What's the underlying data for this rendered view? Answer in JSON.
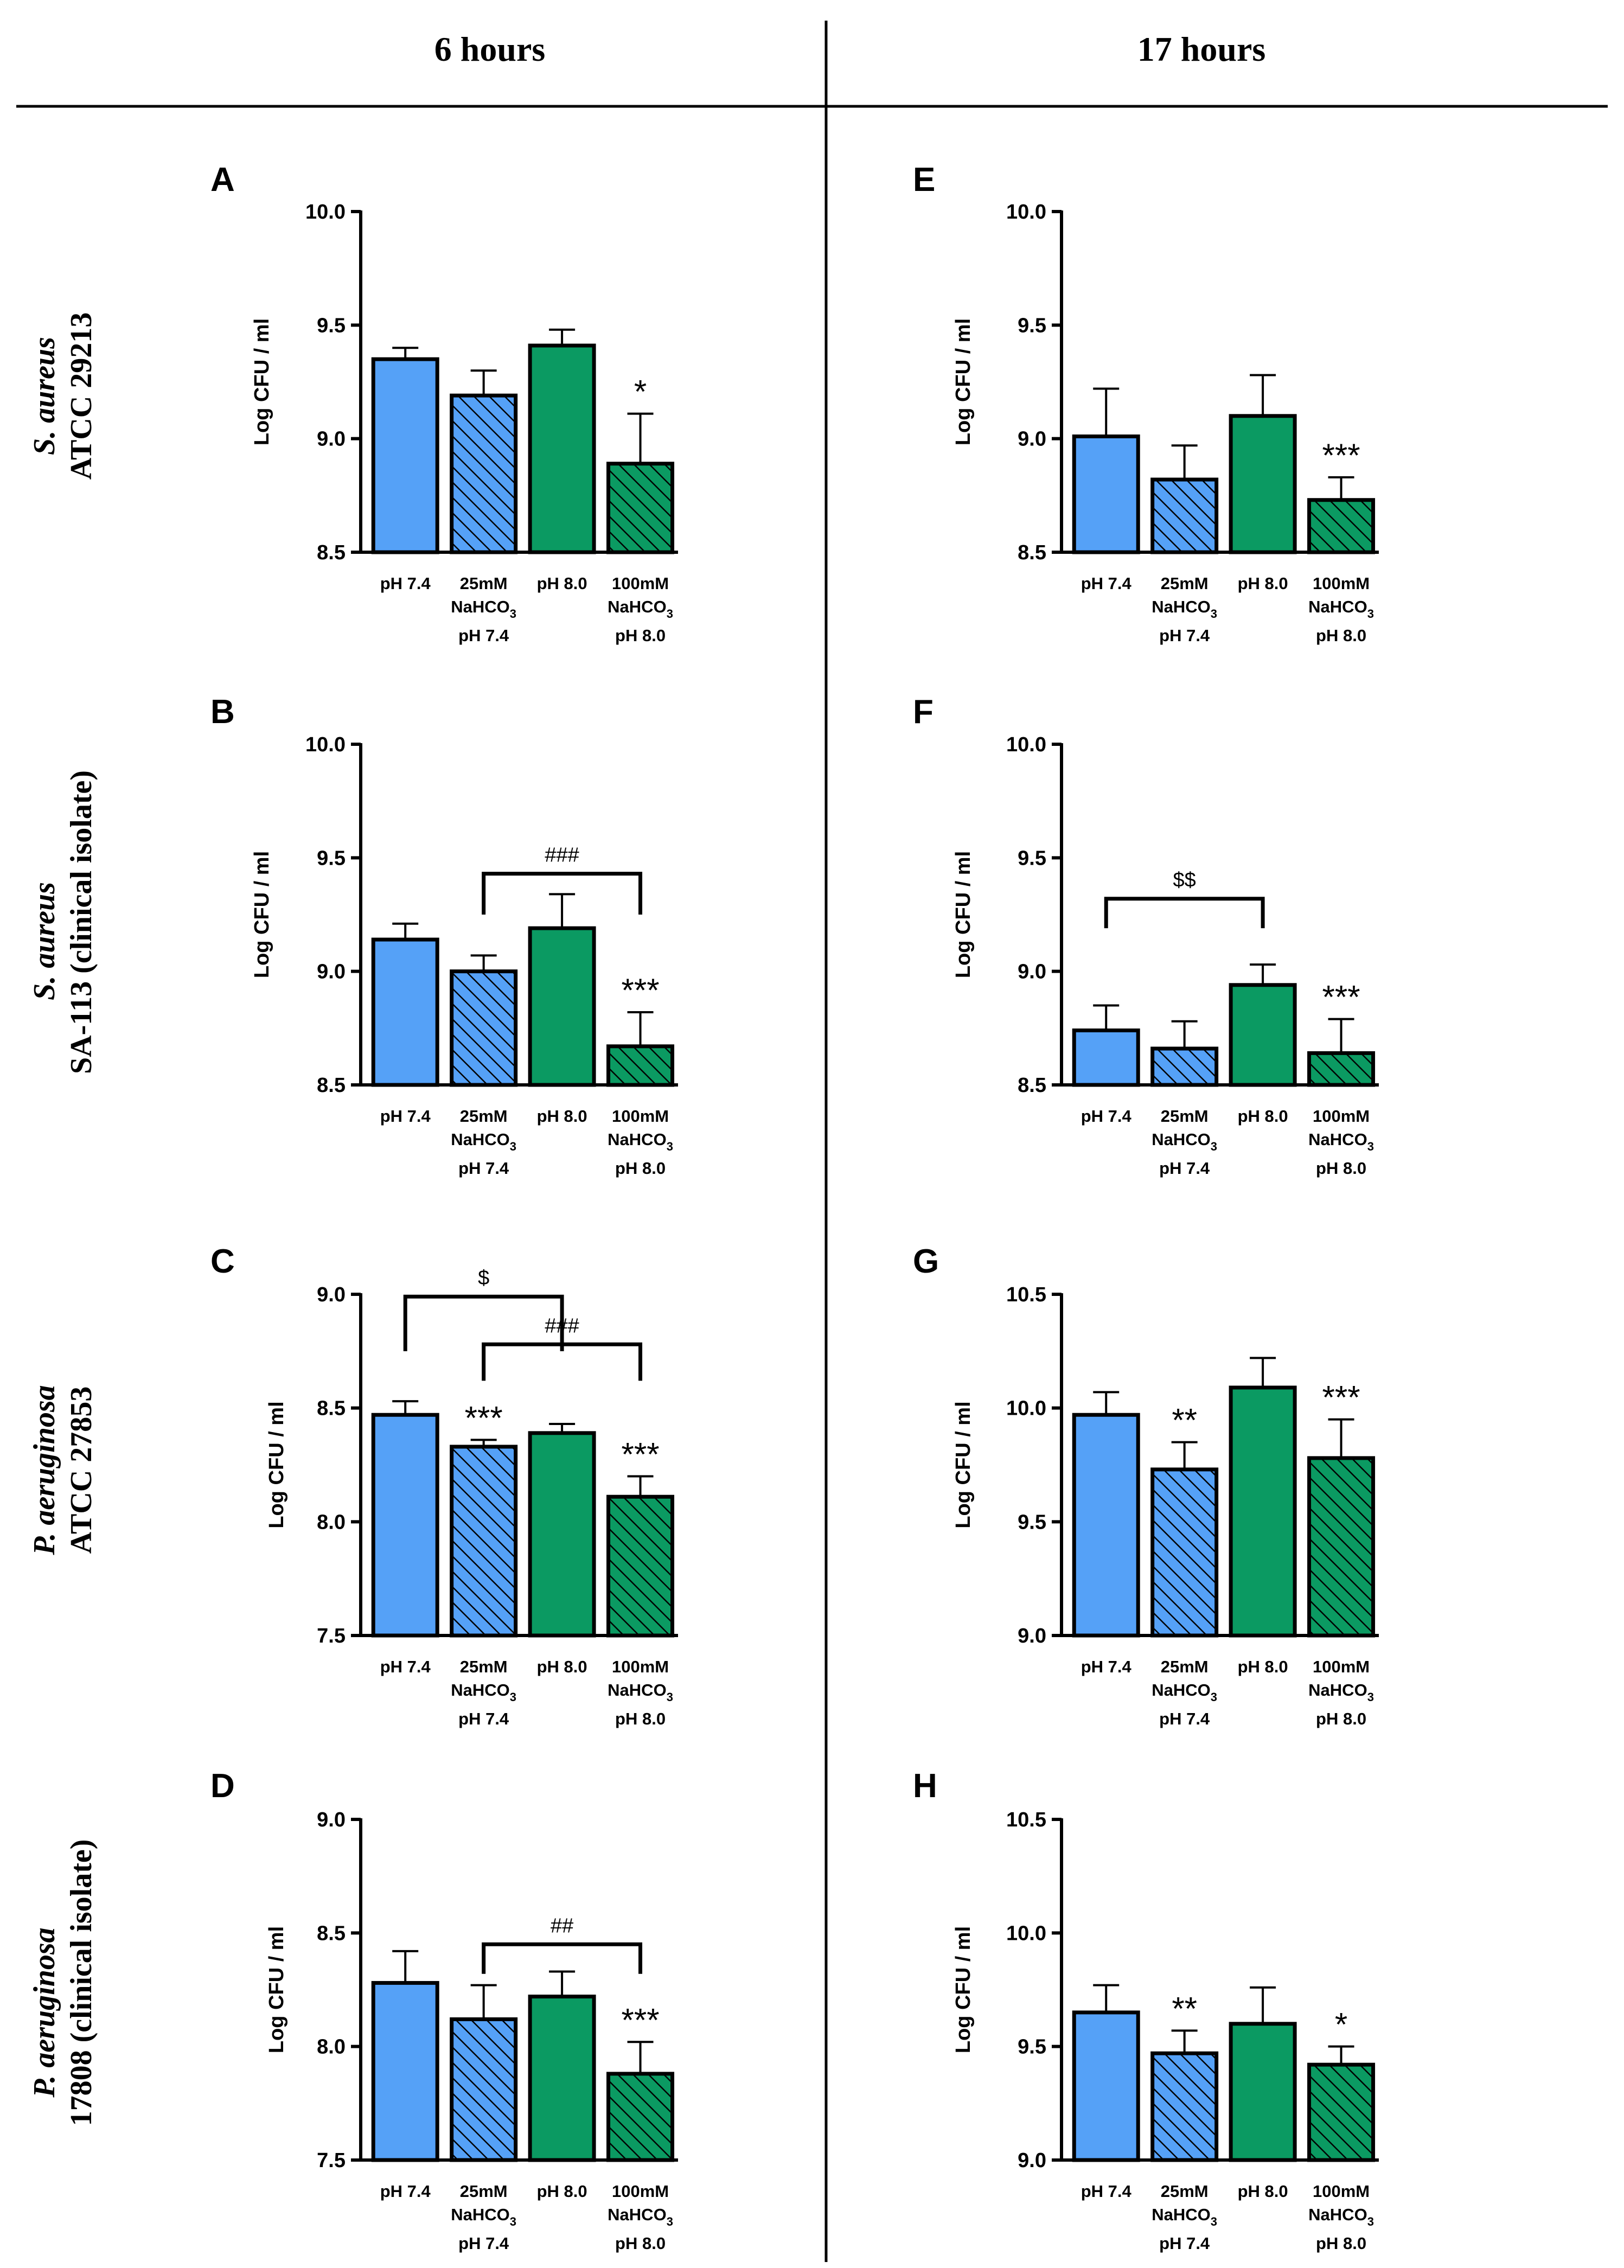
{
  "colors": {
    "ph74": "#55a1f7",
    "ph80": "#0b9a62",
    "stroke": "#000000",
    "background": "#ffffff"
  },
  "columns": [
    "6 hours",
    "17 hours"
  ],
  "rows": [
    {
      "species": "S. aureus",
      "strain": "ATCC 29213"
    },
    {
      "species": "S. aureus",
      "strain": "SA-113 (clinical isolate)"
    },
    {
      "species": "P. aeruginosa",
      "strain": "ATCC 27853"
    },
    {
      "species": "P. aeruginosa",
      "strain": "17808 (clinical isolate)"
    }
  ],
  "chart_data": [
    {
      "panel": "A",
      "type": "bar",
      "time": "6 hours",
      "organism": "S. aureus ATCC 29213",
      "ylabel": "Log CFU / ml",
      "ylim": [
        8.5,
        10.0
      ],
      "yticks": [
        "8.5",
        "9.0",
        "9.5",
        "10.0"
      ],
      "categories": [
        {
          "lines": [
            "pH 7.4"
          ]
        },
        {
          "lines": [
            "25mM",
            "NaHCO3",
            "pH 7.4"
          ]
        },
        {
          "lines": [
            "pH 8.0"
          ]
        },
        {
          "lines": [
            "100mM",
            "NaHCO3",
            "pH 8.0"
          ]
        }
      ],
      "values": [
        9.35,
        9.19,
        9.41,
        8.89
      ],
      "errors": [
        0.05,
        0.11,
        0.07,
        0.22
      ],
      "significance": [
        "",
        "",
        "",
        "*"
      ],
      "brackets": []
    },
    {
      "panel": "E",
      "type": "bar",
      "time": "17 hours",
      "organism": "S. aureus ATCC 29213",
      "ylabel": "Log CFU / ml",
      "ylim": [
        8.5,
        10.0
      ],
      "yticks": [
        "8.5",
        "9.0",
        "9.5",
        "10.0"
      ],
      "categories": [
        {
          "lines": [
            "pH 7.4"
          ]
        },
        {
          "lines": [
            "25mM",
            "NaHCO3",
            "pH 7.4"
          ]
        },
        {
          "lines": [
            "pH 8.0"
          ]
        },
        {
          "lines": [
            "100mM",
            "NaHCO3",
            "pH 8.0"
          ]
        }
      ],
      "values": [
        9.01,
        8.82,
        9.1,
        8.73
      ],
      "errors": [
        0.21,
        0.15,
        0.18,
        0.1
      ],
      "significance": [
        "",
        "",
        "",
        "***"
      ],
      "brackets": []
    },
    {
      "panel": "B",
      "type": "bar",
      "time": "6 hours",
      "organism": "S. aureus SA-113 (clinical isolate)",
      "ylabel": "Log CFU / ml",
      "ylim": [
        8.5,
        10.0
      ],
      "yticks": [
        "8.5",
        "9.0",
        "9.5",
        "10.0"
      ],
      "categories": [
        {
          "lines": [
            "pH 7.4"
          ]
        },
        {
          "lines": [
            "25mM",
            "NaHCO3",
            "pH 7.4"
          ]
        },
        {
          "lines": [
            "pH 8.0"
          ]
        },
        {
          "lines": [
            "100mM",
            "NaHCO3",
            "pH 8.0"
          ]
        }
      ],
      "values": [
        9.14,
        9.0,
        9.19,
        8.67
      ],
      "errors": [
        0.07,
        0.07,
        0.15,
        0.15
      ],
      "significance": [
        "",
        "",
        "",
        "***"
      ],
      "brackets": [
        {
          "from": 1,
          "to": 3,
          "y": 9.43,
          "bottom": 9.25,
          "label": "###"
        }
      ]
    },
    {
      "panel": "F",
      "type": "bar",
      "time": "17 hours",
      "organism": "S. aureus SA-113 (clinical isolate)",
      "ylabel": "Log CFU / ml",
      "ylim": [
        8.5,
        10.0
      ],
      "yticks": [
        "8.5",
        "9.0",
        "9.5",
        "10.0"
      ],
      "categories": [
        {
          "lines": [
            "pH 7.4"
          ]
        },
        {
          "lines": [
            "25mM",
            "NaHCO3",
            "pH 7.4"
          ]
        },
        {
          "lines": [
            "pH 8.0"
          ]
        },
        {
          "lines": [
            "100mM",
            "NaHCO3",
            "pH 8.0"
          ]
        }
      ],
      "values": [
        8.74,
        8.66,
        8.94,
        8.64
      ],
      "errors": [
        0.11,
        0.12,
        0.09,
        0.15
      ],
      "significance": [
        "",
        "",
        "",
        "***"
      ],
      "brackets": [
        {
          "from": 0,
          "to": 2,
          "y": 9.32,
          "bottom": 9.19,
          "label": "$$"
        }
      ]
    },
    {
      "panel": "C",
      "type": "bar",
      "time": "6 hours",
      "organism": "P. aeruginosa ATCC 27853",
      "ylabel": "Log CFU / ml",
      "ylim": [
        7.5,
        9.0
      ],
      "yticks": [
        "7.5",
        "8.0",
        "8.5",
        "9.0"
      ],
      "categories": [
        {
          "lines": [
            "pH 7.4"
          ]
        },
        {
          "lines": [
            "25mM",
            "NaHCO3",
            "pH 7.4"
          ]
        },
        {
          "lines": [
            "pH 8.0"
          ]
        },
        {
          "lines": [
            "100mM",
            "NaHCO3",
            "pH 8.0"
          ]
        }
      ],
      "values": [
        8.47,
        8.33,
        8.39,
        8.11
      ],
      "errors": [
        0.06,
        0.03,
        0.04,
        0.09
      ],
      "significance": [
        "",
        "***",
        "",
        "***"
      ],
      "brackets": [
        {
          "from": 0,
          "to": 2,
          "y": 8.99,
          "bottom": 8.75,
          "label": "$"
        },
        {
          "from": 1,
          "to": 3,
          "y": 8.78,
          "bottom": 8.62,
          "label": "###"
        }
      ]
    },
    {
      "panel": "G",
      "type": "bar",
      "time": "17 hours",
      "organism": "P. aeruginosa ATCC 27853",
      "ylabel": "Log CFU / ml",
      "ylim": [
        9.0,
        10.5
      ],
      "yticks": [
        "9.0",
        "9.5",
        "10.0",
        "10.5"
      ],
      "categories": [
        {
          "lines": [
            "pH 7.4"
          ]
        },
        {
          "lines": [
            "25mM",
            "NaHCO3",
            "pH 7.4"
          ]
        },
        {
          "lines": [
            "pH 8.0"
          ]
        },
        {
          "lines": [
            "100mM",
            "NaHCO3",
            "pH 8.0"
          ]
        }
      ],
      "values": [
        9.97,
        9.73,
        10.09,
        9.78
      ],
      "errors": [
        0.1,
        0.12,
        0.13,
        0.17
      ],
      "significance": [
        "",
        "**",
        "",
        "***"
      ],
      "brackets": []
    },
    {
      "panel": "D",
      "type": "bar",
      "time": "6 hours",
      "organism": "P. aeruginosa 17808 (clinical isolate)",
      "ylabel": "Log CFU / ml",
      "ylim": [
        7.5,
        9.0
      ],
      "yticks": [
        "7.5",
        "8.0",
        "8.5",
        "9.0"
      ],
      "categories": [
        {
          "lines": [
            "pH 7.4"
          ]
        },
        {
          "lines": [
            "25mM",
            "NaHCO3",
            "pH 7.4"
          ]
        },
        {
          "lines": [
            "pH 8.0"
          ]
        },
        {
          "lines": [
            "100mM",
            "NaHCO3",
            "pH 8.0"
          ]
        }
      ],
      "values": [
        8.28,
        8.12,
        8.22,
        7.88
      ],
      "errors": [
        0.14,
        0.15,
        0.11,
        0.14
      ],
      "significance": [
        "",
        "",
        "",
        "***"
      ],
      "brackets": [
        {
          "from": 1,
          "to": 3,
          "y": 8.45,
          "bottom": 8.32,
          "label": "##"
        }
      ]
    },
    {
      "panel": "H",
      "type": "bar",
      "time": "17 hours",
      "organism": "P. aeruginosa 17808 (clinical isolate)",
      "ylabel": "Log CFU / ml",
      "ylim": [
        9.0,
        10.5
      ],
      "yticks": [
        "9.0",
        "9.5",
        "10.0",
        "10.5"
      ],
      "categories": [
        {
          "lines": [
            "pH 7.4"
          ]
        },
        {
          "lines": [
            "25mM",
            "NaHCO3",
            "pH 7.4"
          ]
        },
        {
          "lines": [
            "pH 8.0"
          ]
        },
        {
          "lines": [
            "100mM",
            "NaHCO3",
            "pH 8.0"
          ]
        }
      ],
      "values": [
        9.65,
        9.47,
        9.6,
        9.42
      ],
      "errors": [
        0.12,
        0.1,
        0.16,
        0.08
      ],
      "significance": [
        "",
        "**",
        "",
        "*"
      ],
      "brackets": []
    }
  ]
}
